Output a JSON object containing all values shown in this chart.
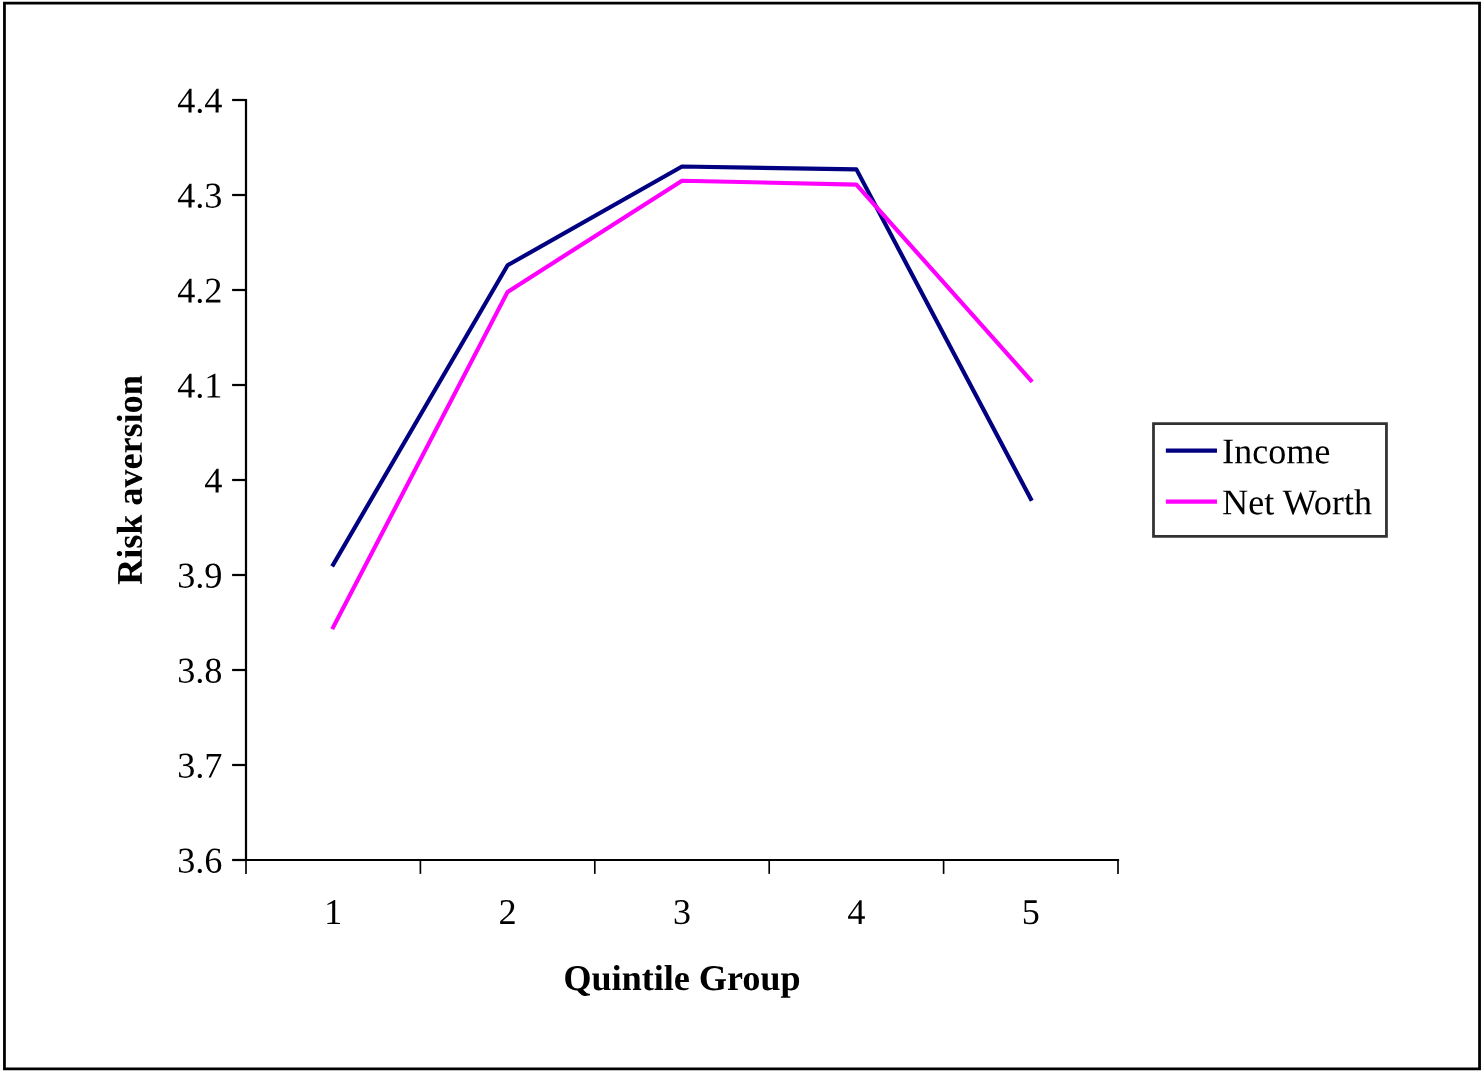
{
  "chart_data": {
    "type": "line",
    "xlabel": "Quintile Group",
    "ylabel": "Risk aversion",
    "categories": [
      "1",
      "2",
      "3",
      "4",
      "5"
    ],
    "series": [
      {
        "name": "Income",
        "color": "#000080",
        "values": [
          3.911,
          4.226,
          4.33,
          4.327,
          3.98
        ]
      },
      {
        "name": "Net Worth",
        "color": "#ff00ff",
        "values": [
          3.845,
          4.198,
          4.315,
          4.311,
          4.105
        ]
      }
    ],
    "ylim": [
      3.6,
      4.4
    ],
    "yticks": [
      3.6,
      3.7,
      3.8,
      3.9,
      4,
      4.1,
      4.2,
      4.3,
      4.4
    ],
    "grid": false,
    "legend": "right",
    "marker": "none",
    "line_style": "solid"
  }
}
